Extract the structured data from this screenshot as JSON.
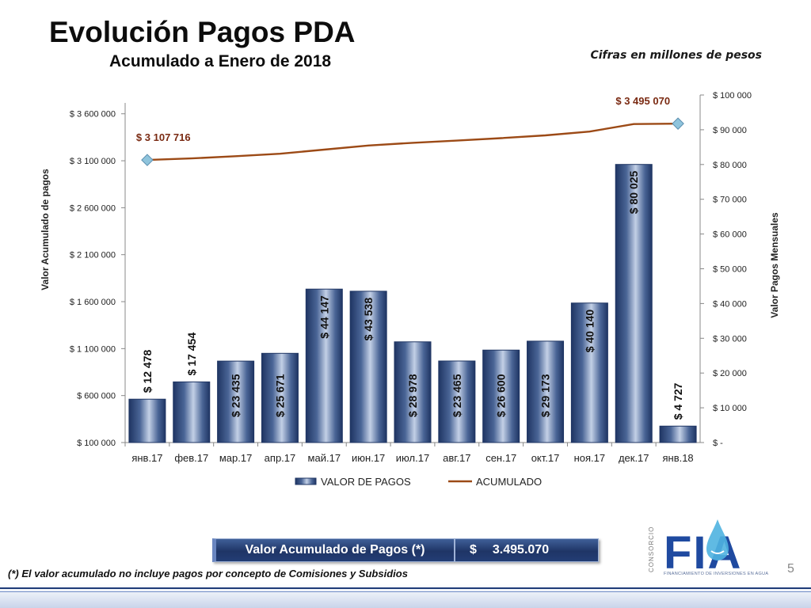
{
  "header": {
    "title": "Evolución Pagos PDA",
    "subtitle": "Acumulado a Enero de 2018",
    "units_note": "Cifras en millones de pesos"
  },
  "chart_data": {
    "type": "bar",
    "categories": [
      "янв.17",
      "фев.17",
      "мар.17",
      "апр.17",
      "май.17",
      "июн.17",
      "июл.17",
      "авг.17",
      "сен.17",
      "окт.17",
      "ноя.17",
      "дек.17",
      "янв.18"
    ],
    "series": [
      {
        "name": "VALOR DE PAGOS",
        "type": "bar",
        "axis": "right",
        "values": [
          12478,
          17454,
          23435,
          25671,
          44147,
          43538,
          28978,
          23465,
          26600,
          29173,
          40140,
          80025,
          4727
        ],
        "labels": [
          "$ 12 478",
          "$ 17 454",
          "$ 23 435",
          "$ 25 671",
          "$ 44 147",
          "$ 43 538",
          "$ 28 978",
          "$ 23 465",
          "$ 26 600",
          "$ 29 173",
          "$ 40 140",
          "$ 80 025",
          "$ 4 727"
        ]
      },
      {
        "name": "ACUMULADO",
        "type": "line",
        "axis": "left",
        "values": [
          3107716,
          3125170,
          3148605,
          3174276,
          3218423,
          3261961,
          3290939,
          3314404,
          3341004,
          3370177,
          3410317,
          3490342,
          3495070
        ],
        "point_labels": [
          {
            "index": 0,
            "text": "$ 3 107 716"
          },
          {
            "index": 12,
            "text": "$ 3 495 070"
          }
        ]
      }
    ],
    "y_left": {
      "label": "Valor Acumulado de pagos",
      "range": [
        100000,
        3800000
      ],
      "ticks": [
        100000,
        600000,
        1100000,
        1600000,
        2100000,
        2600000,
        3100000,
        3600000
      ],
      "tick_labels": [
        "$ 100 000",
        "$ 600 000",
        "$ 1 100 000",
        "$ 1 600 000",
        "$ 2 100 000",
        "$ 2 600 000",
        "$ 3 100 000",
        "$ 3 600 000"
      ]
    },
    "y_right": {
      "label": "Valor Pagos Mensuales",
      "range": [
        0,
        100000
      ],
      "ticks": [
        0,
        10000,
        20000,
        30000,
        40000,
        50000,
        60000,
        70000,
        80000,
        90000,
        100000
      ],
      "tick_labels": [
        "$ -",
        "$ 10 000",
        "$ 20 000",
        "$ 30 000",
        "$ 40 000",
        "$ 50 000",
        "$ 60 000",
        "$ 70 000",
        "$ 80 000",
        "$ 90 000",
        "$ 100 000"
      ]
    },
    "legend": {
      "position": "bottom",
      "items": [
        "VALOR DE PAGOS",
        "ACUMULADO"
      ]
    },
    "grid": false,
    "colors": {
      "bar": "#2a4475",
      "bar_light": "#c3d0e6",
      "line": "#9c4a16",
      "marker": "#8fc4dc",
      "label_accum": "#7a2a12"
    }
  },
  "summary": {
    "label": "Valor Acumulado de Pagos (*)",
    "currency": "$",
    "value": "3.495.070"
  },
  "footnote": "(*) El valor acumulado no incluye pagos por concepto de Comisiones y Subsidios",
  "page_number": "5",
  "logo": {
    "side_text": "CONSORCIO",
    "letters": "FIA",
    "tagline": "FINANCIAMIENTO DE INVERSIONES EN AGUA",
    "colors": {
      "blue": "#1f4aa0",
      "drop": "#4fb3e0"
    }
  }
}
